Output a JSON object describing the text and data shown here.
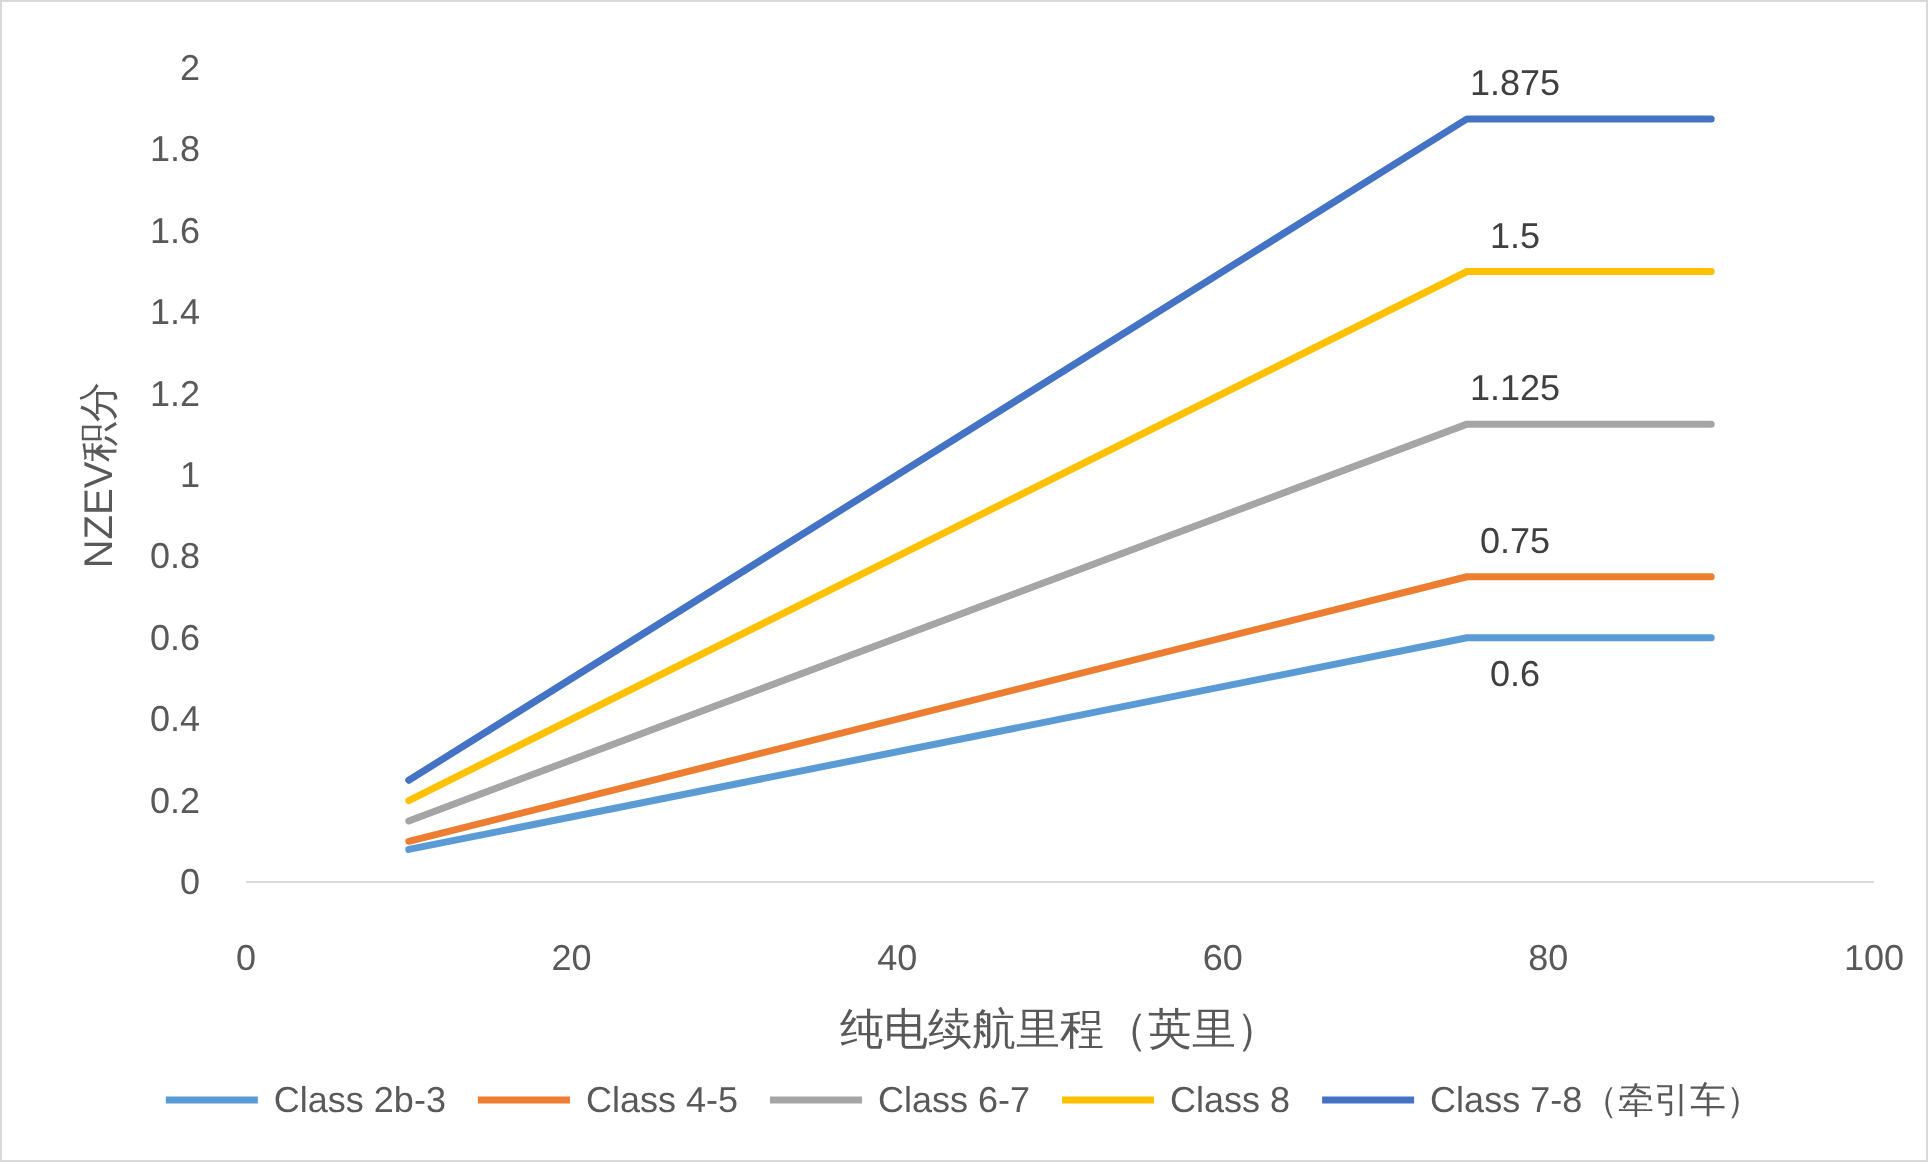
{
  "chart_data": {
    "type": "line",
    "xlabel": "纯电续航里程（英里）",
    "ylabel": "NZEV积分",
    "xlim": [
      0,
      100
    ],
    "xticks": [
      0,
      20,
      40,
      60,
      80,
      100
    ],
    "ylim": [
      0,
      2
    ],
    "yticks": [
      0,
      0.2,
      0.4,
      0.6,
      0.8,
      1,
      1.2,
      1.4,
      1.6,
      1.8,
      2
    ],
    "x": [
      10,
      75,
      90
    ],
    "grid": false,
    "legend": "bottom",
    "marker": "none",
    "line_style": "solid",
    "series": [
      {
        "name": "Class 2b-3",
        "color": "#5b9bd5",
        "values": [
          0.08,
          0.6,
          0.6
        ],
        "value_labels": [
          null,
          "0.6",
          null
        ]
      },
      {
        "name": "Class 4-5",
        "color": "#ed7d31",
        "values": [
          0.1,
          0.75,
          0.75
        ],
        "value_labels": [
          null,
          "0.75",
          null
        ]
      },
      {
        "name": "Class 6-7",
        "color": "#a5a5a5",
        "values": [
          0.15,
          1.125,
          1.125
        ],
        "value_labels": [
          null,
          "1.125",
          null
        ]
      },
      {
        "name": "Class 8",
        "color": "#ffc000",
        "values": [
          0.2,
          1.5,
          1.5
        ],
        "value_labels": [
          null,
          "1.5",
          null
        ]
      },
      {
        "name": "Class 7-8（牵引车）",
        "color": "#4472c4",
        "values": [
          0.25,
          1.875,
          1.875
        ],
        "value_labels": [
          null,
          "1.875",
          null
        ]
      }
    ]
  }
}
